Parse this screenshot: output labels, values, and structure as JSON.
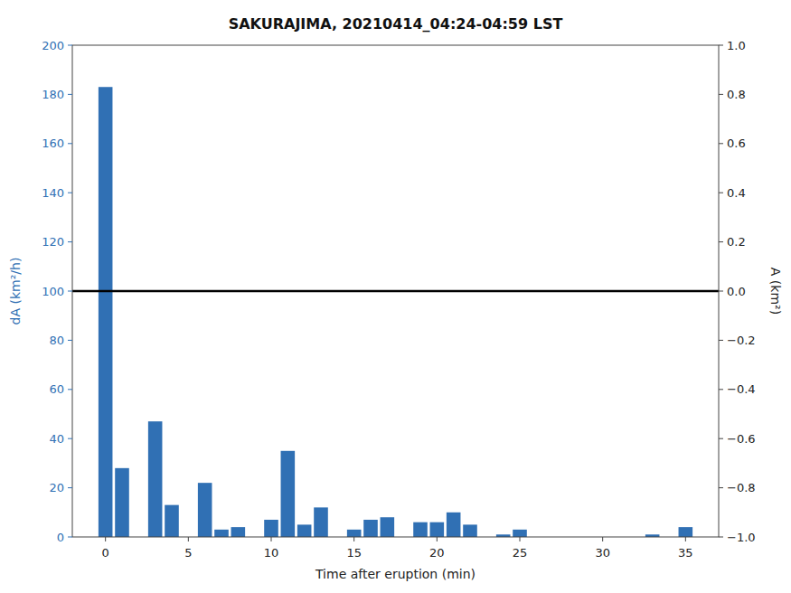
{
  "chart_data": {
    "type": "bar",
    "title": "SAKURAJIMA, 20210414_04:24-04:59 LST",
    "x_label": "Time after eruption (min)",
    "y_label": "dA (km²/h)",
    "y2_label": "A (km²)",
    "x": [
      0,
      1,
      2,
      3,
      4,
      5,
      6,
      7,
      8,
      9,
      10,
      11,
      12,
      13,
      14,
      15,
      16,
      17,
      18,
      19,
      20,
      21,
      22,
      23,
      24,
      25,
      26,
      27,
      28,
      29,
      30,
      31,
      32,
      33,
      34,
      35
    ],
    "values": [
      183,
      28,
      0,
      47,
      13,
      0,
      22,
      3,
      4,
      0,
      7,
      35,
      5,
      12,
      0,
      3,
      7,
      8,
      0,
      6,
      6,
      10,
      5,
      0,
      1,
      3,
      0,
      0,
      0,
      0,
      0,
      0,
      0,
      1,
      0,
      4
    ],
    "color": "#3070b4",
    "hline": {
      "y": 100,
      "color": "black"
    },
    "xlim": [
      -2.0,
      37.0
    ],
    "xticks": [
      0,
      5,
      10,
      15,
      20,
      25,
      30,
      35
    ],
    "ylim": [
      0,
      200
    ],
    "yticks": [
      0,
      20,
      40,
      60,
      80,
      100,
      120,
      140,
      160,
      180,
      200
    ],
    "y2lim": [
      -1,
      1
    ],
    "y2ticks": [
      {
        "value": -1.0,
        "label": "−1.0"
      },
      {
        "value": -0.8,
        "label": "−0.8"
      },
      {
        "value": -0.6,
        "label": "−0.6"
      },
      {
        "value": -0.4,
        "label": "−0.4"
      },
      {
        "value": -0.2,
        "label": "−0.2"
      },
      {
        "value": 0.0,
        "label": "0.0"
      },
      0.2,
      0.4,
      0.6,
      0.8,
      {
        "value": 1.0,
        "label": "1.0"
      }
    ],
    "grid": false
  }
}
